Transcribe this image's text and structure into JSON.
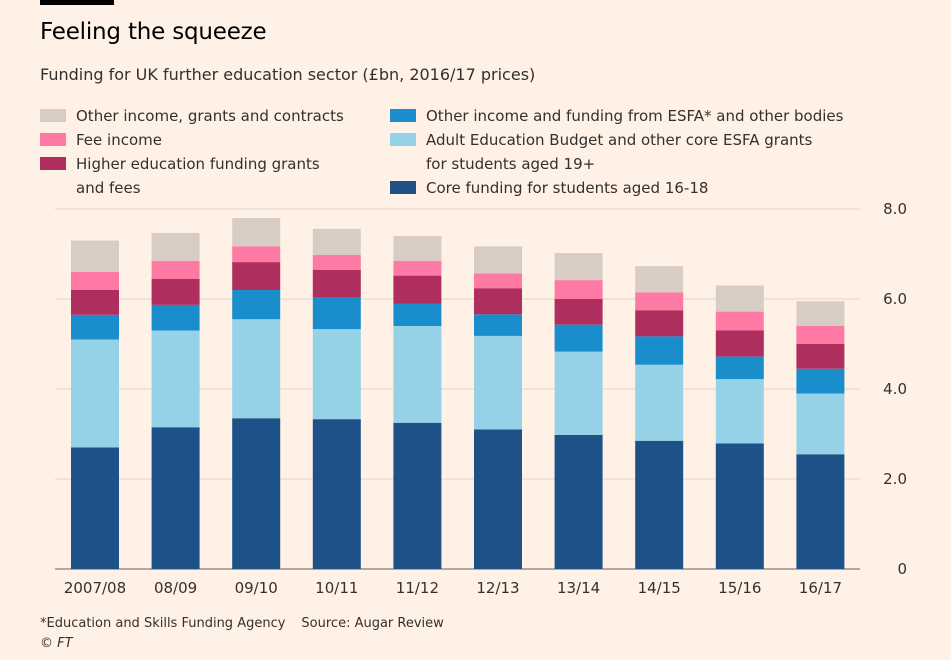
{
  "header": {
    "title": "Feeling the squeeze",
    "subtitle": "Funding for UK further education sector (£bn, 2016/17 prices)"
  },
  "footer": {
    "note": "*Education and Skills Funding Agency",
    "source": "Source: Augar Review",
    "credit": "© FT"
  },
  "chart_data": {
    "type": "bar",
    "stacked": true,
    "title": "Feeling the squeeze",
    "subtitle": "Funding for UK further education sector (£bn, 2016/17 prices)",
    "xlabel": "",
    "ylabel": "",
    "ylim": [
      0,
      8
    ],
    "yticks": [
      {
        "value": 0,
        "label": "0"
      },
      {
        "value": 2,
        "label": "2.0"
      },
      {
        "value": 4,
        "label": "4.0"
      },
      {
        "value": 6,
        "label": "6.0"
      },
      {
        "value": 8,
        "label": "8.0"
      }
    ],
    "grid": true,
    "categories": [
      "2007/08",
      "08/09",
      "09/10",
      "10/11",
      "11/12",
      "12/13",
      "13/14",
      "14/15",
      "15/16",
      "16/17"
    ],
    "series": [
      {
        "key": "core",
        "name": "Core funding for students aged 16-18",
        "color": "#1F5189",
        "values": [
          2.7,
          3.15,
          3.35,
          3.33,
          3.25,
          3.1,
          2.98,
          2.85,
          2.79,
          2.55
        ]
      },
      {
        "key": "aeb",
        "name": "Adult Education Budget and other core ESFA grants for students aged 19+",
        "color": "#96D2E7",
        "values": [
          2.4,
          2.15,
          2.2,
          2.0,
          2.15,
          2.08,
          1.85,
          1.69,
          1.43,
          1.35
        ]
      },
      {
        "key": "other_esfa",
        "name": "Other income and funding from ESFA* and other bodies",
        "color": "#1A8ECC",
        "values": [
          0.55,
          0.57,
          0.65,
          0.7,
          0.5,
          0.48,
          0.6,
          0.63,
          0.5,
          0.55
        ]
      },
      {
        "key": "he",
        "name": "Higher education funding grants and fees",
        "color": "#AE2E5D",
        "values": [
          0.55,
          0.58,
          0.62,
          0.62,
          0.62,
          0.58,
          0.57,
          0.58,
          0.58,
          0.55
        ]
      },
      {
        "key": "fee",
        "name": "Fee income",
        "color": "#FF79A5",
        "values": [
          0.4,
          0.4,
          0.35,
          0.33,
          0.33,
          0.33,
          0.42,
          0.4,
          0.42,
          0.4
        ]
      },
      {
        "key": "other",
        "name": "Other income, grants and contracts",
        "color": "#D8CDC5",
        "values": [
          0.7,
          0.62,
          0.63,
          0.58,
          0.55,
          0.6,
          0.6,
          0.58,
          0.58,
          0.55
        ]
      }
    ],
    "legend": {
      "left": [
        {
          "key": "other",
          "label": "Other income, grants and contracts",
          "color": "#D8CDC5"
        },
        {
          "key": "fee",
          "label": "Fee income",
          "color": "#FF79A5"
        },
        {
          "key": "he",
          "label": "Higher education funding grants",
          "label2": "and fees",
          "color": "#AE2E5D"
        }
      ],
      "right": [
        {
          "key": "other_esfa",
          "label": "Other income and funding from ESFA* and other bodies",
          "color": "#1A8ECC"
        },
        {
          "key": "aeb",
          "label": "Adult Education Budget and other core ESFA grants",
          "label2": "for students aged 19+",
          "color": "#96D2E7"
        },
        {
          "key": "core",
          "label": "Core funding for students aged 16-18",
          "color": "#1F5189"
        }
      ]
    }
  }
}
